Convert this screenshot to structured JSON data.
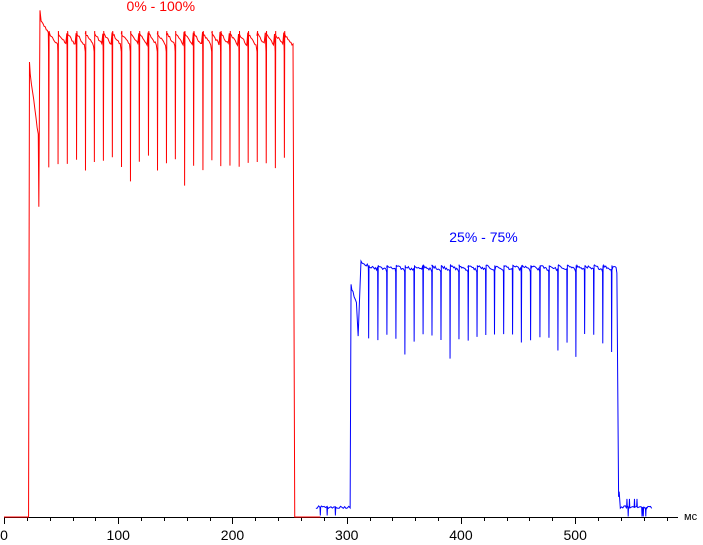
{
  "chart_data": {
    "type": "line",
    "title": "",
    "xlabel": "",
    "ylabel": "",
    "x_unit": "мс",
    "xlim": [
      0,
      590
    ],
    "ylim": [
      0,
      100
    ],
    "x_ticks": [
      0,
      100,
      200,
      300,
      400,
      500
    ],
    "grid": false,
    "legend": "none",
    "series": [
      {
        "name": "0% - 100%",
        "color": "#ff0000",
        "baseline": 0,
        "rise_start": 21.5,
        "initial_peak": 88,
        "initial_dip": 73,
        "first_spike_x": 30.5,
        "first_spike_low": 60,
        "overshoot_x": 31.5,
        "overshoot": 98,
        "plateau_top": 92.5,
        "plateau_ripple": 2.5,
        "dip_low": 67,
        "pulse_period": 7.9,
        "pulse_start": 39,
        "fall_x": 253,
        "end_x": 277
      },
      {
        "name": "25% - 75%",
        "color": "#0000ff",
        "start_x": 273,
        "low_level": 1.9,
        "rise_start": 303,
        "initial_peak": 45,
        "initial_dip": 41,
        "overshoot_x": 312.5,
        "overshoot": 49.5,
        "plateau_top": 48.2,
        "plateau_ripple": 0.8,
        "dip_low": 33.5,
        "pulse_period": 7.9,
        "pulse_start": 319,
        "fall_x": 536.5,
        "end_x": 568
      }
    ]
  }
}
